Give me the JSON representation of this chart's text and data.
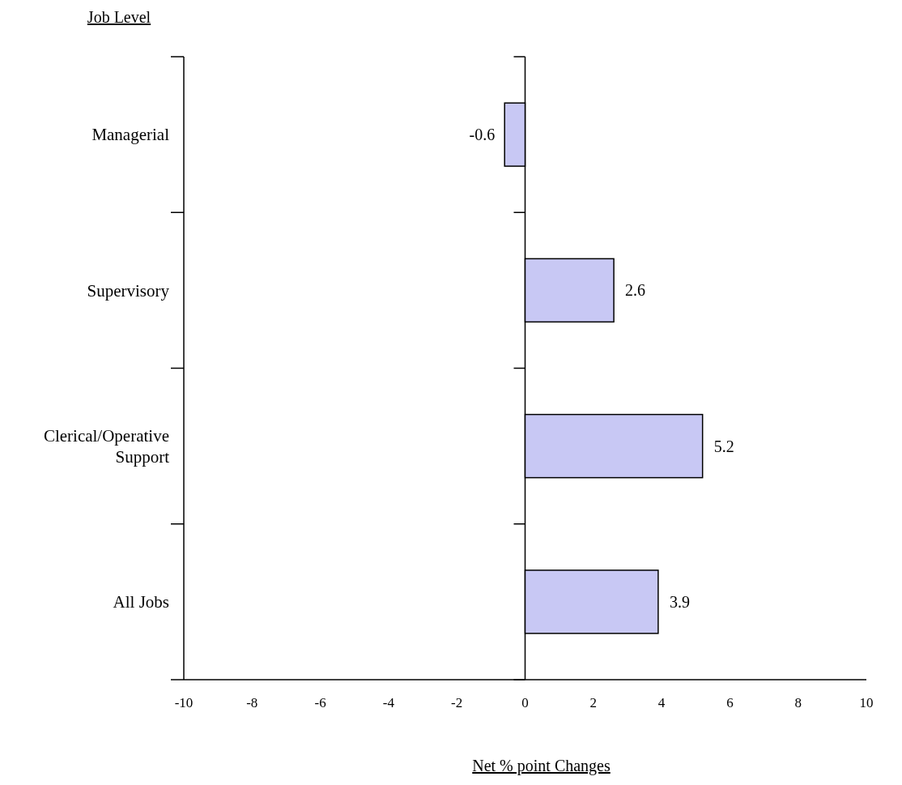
{
  "chart_data": {
    "type": "bar",
    "orientation": "horizontal",
    "ylabel": "Job Level",
    "xlabel": "Net % point Changes",
    "categories": [
      "Managerial",
      "Supervisory",
      "Clerical/Operative Support",
      "All Jobs"
    ],
    "values": [
      -0.6,
      2.6,
      5.2,
      3.9
    ],
    "color": "#c8c8f4",
    "data_labels": true,
    "xlim": [
      -10,
      10
    ],
    "xticks": [
      -10,
      -8,
      -6,
      -4,
      -2,
      0,
      2,
      4,
      6,
      8,
      10
    ]
  }
}
